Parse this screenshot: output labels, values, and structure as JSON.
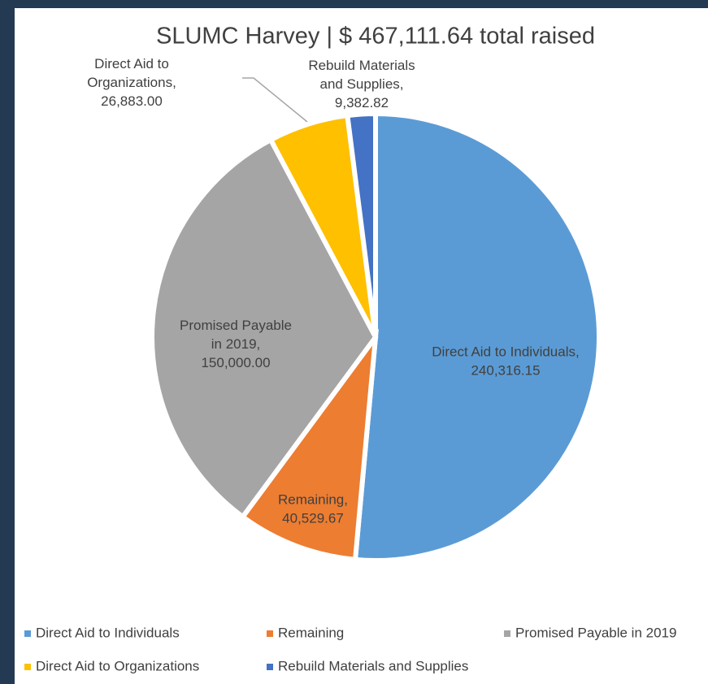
{
  "chart_data": {
    "type": "pie",
    "title": "SLUMC Harvey | $ 467,111.64 total raised",
    "categories": [
      "Direct Aid to Individuals",
      "Remaining",
      "Promised Payable in 2019",
      "Direct Aid to Organizations",
      "Rebuild Materials and Supplies"
    ],
    "values": [
      240316.15,
      40529.67,
      150000.0,
      26883.0,
      9382.82
    ],
    "value_labels": [
      "Direct Aid to Individuals, 240,316.15",
      "Remaining, 40,529.67",
      "Promised Payable in 2019, 150,000.00",
      "Direct Aid to Organizations, 26,883.00",
      "Rebuild Materials and Supplies, 9,382.82"
    ],
    "colors": [
      "#5b9bd5",
      "#ed7d31",
      "#a5a5a5",
      "#ffc000",
      "#4472c4"
    ],
    "legend": "bottom"
  }
}
